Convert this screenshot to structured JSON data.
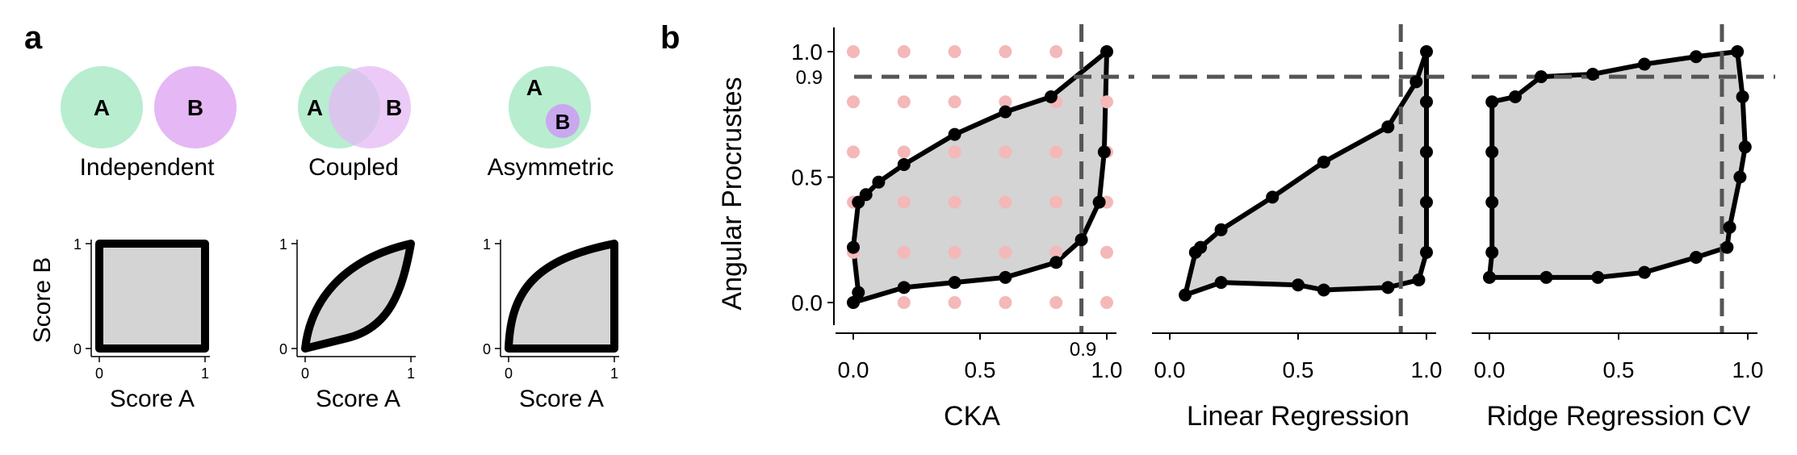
{
  "panel_a": {
    "label": "a",
    "venn": [
      {
        "caption": "Independent",
        "a": "A",
        "b": "B"
      },
      {
        "caption": "Coupled",
        "a": "A",
        "b": "B"
      },
      {
        "caption": "Asymmetric",
        "a": "A",
        "b": "B"
      }
    ],
    "mini_axes": {
      "xlabel": "Score A",
      "ylabel": "Score B",
      "ticks": [
        "0",
        "1"
      ]
    }
  },
  "panel_b": {
    "label": "b",
    "ylabel": "Angular Procrustes",
    "ytick_labels": [
      "0.0",
      "0.5",
      "1.0"
    ],
    "ref_label_y": "0.9",
    "ref_label_x": "0.9",
    "xtick_labels": [
      "0.0",
      "0.5",
      "1.0"
    ]
  },
  "colors": {
    "venn_a": "#b8edd0",
    "venn_b": "#e5b8f5",
    "venn_overlap": "#b5aee0",
    "fill_gray": "#d4d4d4",
    "outline": "#000000",
    "dashed_ref": "#555555",
    "pink_points": "#f4b8b8"
  },
  "chart_data": [
    {
      "type": "area",
      "name": "Independent",
      "xlabel": "Score A",
      "ylabel": "Score B",
      "xlim": [
        0,
        1
      ],
      "ylim": [
        0,
        1
      ],
      "boundary": [
        [
          0,
          0
        ],
        [
          0,
          1
        ],
        [
          1,
          1
        ],
        [
          1,
          0
        ]
      ]
    },
    {
      "type": "area",
      "name": "Coupled",
      "xlabel": "Score A",
      "ylabel": "Score B",
      "xlim": [
        0,
        1
      ],
      "ylim": [
        0,
        1
      ],
      "boundary_upper": [
        [
          0,
          0
        ],
        [
          0.1,
          0.35
        ],
        [
          0.3,
          0.67
        ],
        [
          0.55,
          0.87
        ],
        [
          1,
          1
        ]
      ],
      "boundary_lower": [
        [
          0,
          0
        ],
        [
          0.4,
          0.1
        ],
        [
          0.8,
          0.3
        ],
        [
          1,
          1
        ]
      ]
    },
    {
      "type": "area",
      "name": "Asymmetric",
      "xlabel": "Score A",
      "ylabel": "Score B",
      "xlim": [
        0,
        1
      ],
      "ylim": [
        0,
        1
      ],
      "boundary_upper": [
        [
          0,
          0
        ],
        [
          0.06,
          0.4
        ],
        [
          0.2,
          0.7
        ],
        [
          0.45,
          0.88
        ],
        [
          1,
          1
        ]
      ],
      "boundary_lower": [
        [
          0,
          0
        ],
        [
          1,
          0
        ],
        [
          1,
          1
        ]
      ]
    },
    {
      "type": "scatter",
      "xlabel": "CKA",
      "ylabel": "Angular Procrustes",
      "xlim": [
        0,
        1
      ],
      "ylim": [
        0,
        1
      ],
      "xticks": [
        0,
        0.5,
        1
      ],
      "yticks": [
        0,
        0.5,
        1
      ],
      "reference_lines": {
        "x": 0.9,
        "y": 0.9
      },
      "grid_points": {
        "x": [
          0,
          0.2,
          0.4,
          0.6,
          0.8,
          1
        ],
        "y": [
          0,
          0.2,
          0.4,
          0.6,
          0.8,
          1
        ]
      },
      "boundary": [
        [
          0,
          0
        ],
        [
          0.2,
          0.06
        ],
        [
          0.4,
          0.08
        ],
        [
          0.6,
          0.1
        ],
        [
          0.8,
          0.16
        ],
        [
          0.9,
          0.25
        ],
        [
          0.97,
          0.4
        ],
        [
          0.99,
          0.6
        ],
        [
          1,
          1
        ],
        [
          0.78,
          0.82
        ],
        [
          0.6,
          0.76
        ],
        [
          0.4,
          0.67
        ],
        [
          0.2,
          0.55
        ],
        [
          0.1,
          0.48
        ],
        [
          0.05,
          0.43
        ],
        [
          0.02,
          0.4
        ],
        [
          0,
          0.22
        ],
        [
          0.02,
          0.04
        ]
      ]
    },
    {
      "type": "area",
      "xlabel": "Linear Regression",
      "xlim": [
        0,
        1
      ],
      "ylim": [
        0,
        1
      ],
      "xticks": [
        0,
        0.5,
        1
      ],
      "yticks": [
        0,
        0.5,
        1
      ],
      "reference_lines": {
        "x": 0.9,
        "y": 0.9
      },
      "boundary": [
        [
          0.06,
          0.03
        ],
        [
          0.2,
          0.08
        ],
        [
          0.5,
          0.07
        ],
        [
          0.6,
          0.05
        ],
        [
          0.85,
          0.06
        ],
        [
          0.97,
          0.09
        ],
        [
          1,
          0.2
        ],
        [
          1,
          0.4
        ],
        [
          1,
          0.6
        ],
        [
          1,
          0.8
        ],
        [
          1,
          1
        ],
        [
          0.96,
          0.88
        ],
        [
          0.85,
          0.7
        ],
        [
          0.6,
          0.56
        ],
        [
          0.4,
          0.42
        ],
        [
          0.2,
          0.29
        ],
        [
          0.12,
          0.22
        ],
        [
          0.1,
          0.2
        ]
      ]
    },
    {
      "type": "area",
      "xlabel": "Ridge Regression CV",
      "xlim": [
        0,
        1
      ],
      "ylim": [
        0,
        1
      ],
      "xticks": [
        0,
        0.5,
        1
      ],
      "yticks": [
        0,
        0.5,
        1
      ],
      "reference_lines": {
        "x": 0.9,
        "y": 0.9
      },
      "boundary": [
        [
          0,
          0.1
        ],
        [
          0.22,
          0.1
        ],
        [
          0.42,
          0.1
        ],
        [
          0.6,
          0.12
        ],
        [
          0.8,
          0.18
        ],
        [
          0.92,
          0.22
        ],
        [
          0.93,
          0.3
        ],
        [
          0.97,
          0.5
        ],
        [
          0.99,
          0.62
        ],
        [
          0.98,
          0.82
        ],
        [
          0.96,
          1
        ],
        [
          0.8,
          0.98
        ],
        [
          0.6,
          0.95
        ],
        [
          0.4,
          0.91
        ],
        [
          0.2,
          0.9
        ],
        [
          0.1,
          0.82
        ],
        [
          0.01,
          0.8
        ],
        [
          0.01,
          0.6
        ],
        [
          0.01,
          0.4
        ],
        [
          0.01,
          0.2
        ]
      ]
    }
  ]
}
